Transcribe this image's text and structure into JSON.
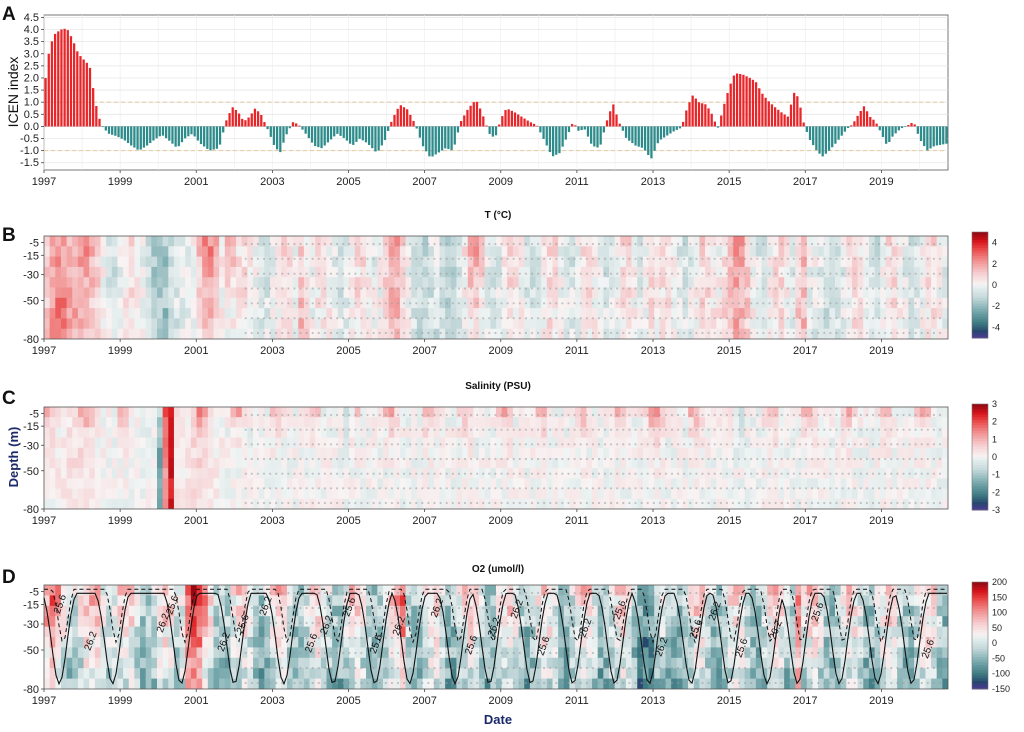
{
  "chart_data": [
    {
      "panel": "A",
      "type": "bar",
      "ylabel": "ICEN index",
      "ylim": [
        -1.8,
        4.6
      ],
      "yticks": [
        "4.5",
        "4.0",
        "3.5",
        "3.0",
        "2.5",
        "2.0",
        "1.5",
        "1.0",
        "0.5",
        "0.0",
        "-0.5",
        "-1.0",
        "-1.5"
      ],
      "xticks": [
        "1997",
        "1999",
        "2001",
        "2003",
        "2005",
        "2007",
        "2009",
        "2011",
        "2013",
        "2015",
        "2017",
        "2019"
      ],
      "xrange": [
        1997.0,
        2020.75
      ],
      "threshold_lines": [
        1.0,
        -1.0
      ],
      "colors": {
        "positive": "#e8262a",
        "negative": "#2e8b8b",
        "threshold": "#e8c89a"
      },
      "series_anchors": [
        [
          1997.0,
          1.5
        ],
        [
          1997.15,
          3.3
        ],
        [
          1997.3,
          3.85
        ],
        [
          1997.45,
          4.0
        ],
        [
          1997.6,
          4.05
        ],
        [
          1997.75,
          3.6
        ],
        [
          1997.9,
          3.0
        ],
        [
          1998.05,
          2.75
        ],
        [
          1998.2,
          2.5
        ],
        [
          1998.35,
          1.0
        ],
        [
          1998.5,
          0.05
        ],
        [
          1998.7,
          -0.3
        ],
        [
          1998.9,
          -0.4
        ],
        [
          1999.1,
          -0.55
        ],
        [
          1999.3,
          -0.8
        ],
        [
          1999.5,
          -1.0
        ],
        [
          1999.7,
          -0.8
        ],
        [
          1999.9,
          -0.55
        ],
        [
          2000.1,
          -0.35
        ],
        [
          2000.3,
          -0.6
        ],
        [
          2000.5,
          -0.9
        ],
        [
          2000.7,
          -0.5
        ],
        [
          2000.9,
          -0.3
        ],
        [
          2001.1,
          -0.7
        ],
        [
          2001.35,
          -1.0
        ],
        [
          2001.6,
          -0.9
        ],
        [
          2001.8,
          0.3
        ],
        [
          2001.95,
          0.8
        ],
        [
          2002.1,
          0.6
        ],
        [
          2002.25,
          0.2
        ],
        [
          2002.4,
          0.4
        ],
        [
          2002.55,
          0.75
        ],
        [
          2002.7,
          0.5
        ],
        [
          2002.9,
          -0.2
        ],
        [
          2003.05,
          -0.8
        ],
        [
          2003.2,
          -1.1
        ],
        [
          2003.35,
          -0.4
        ],
        [
          2003.55,
          0.2
        ],
        [
          2003.7,
          0.05
        ],
        [
          2003.9,
          -0.35
        ],
        [
          2004.1,
          -0.8
        ],
        [
          2004.3,
          -0.9
        ],
        [
          2004.5,
          -0.6
        ],
        [
          2004.7,
          -0.3
        ],
        [
          2004.9,
          -0.5
        ],
        [
          2005.1,
          -0.8
        ],
        [
          2005.3,
          -0.5
        ],
        [
          2005.5,
          -0.7
        ],
        [
          2005.75,
          -1.1
        ],
        [
          2005.95,
          -0.6
        ],
        [
          2006.15,
          0.3
        ],
        [
          2006.35,
          0.9
        ],
        [
          2006.55,
          0.7
        ],
        [
          2006.75,
          0.1
        ],
        [
          2006.95,
          -0.8
        ],
        [
          2007.15,
          -1.3
        ],
        [
          2007.35,
          -1.1
        ],
        [
          2007.55,
          -0.9
        ],
        [
          2007.75,
          -1.0
        ],
        [
          2007.95,
          0.2
        ],
        [
          2008.15,
          0.75
        ],
        [
          2008.35,
          1.1
        ],
        [
          2008.5,
          0.6
        ],
        [
          2008.7,
          -0.3
        ],
        [
          2008.85,
          -0.5
        ],
        [
          2009.0,
          0.3
        ],
        [
          2009.15,
          0.75
        ],
        [
          2009.35,
          0.6
        ],
        [
          2009.55,
          0.4
        ],
        [
          2009.75,
          0.2
        ],
        [
          2009.95,
          0.05
        ],
        [
          2010.15,
          -0.6
        ],
        [
          2010.35,
          -1.25
        ],
        [
          2010.55,
          -1.1
        ],
        [
          2010.75,
          -0.4
        ],
        [
          2010.9,
          0.2
        ],
        [
          2011.05,
          -0.2
        ],
        [
          2011.2,
          -0.1
        ],
        [
          2011.4,
          -0.8
        ],
        [
          2011.6,
          -0.9
        ],
        [
          2011.8,
          0.3
        ],
        [
          2011.95,
          0.95
        ],
        [
          2012.1,
          0.2
        ],
        [
          2012.3,
          -0.5
        ],
        [
          2012.55,
          -0.8
        ],
        [
          2012.75,
          -0.9
        ],
        [
          2012.95,
          -1.35
        ],
        [
          2013.15,
          -0.6
        ],
        [
          2013.35,
          -0.4
        ],
        [
          2013.55,
          -0.2
        ],
        [
          2013.75,
          -0.05
        ],
        [
          2013.9,
          0.8
        ],
        [
          2014.05,
          1.3
        ],
        [
          2014.2,
          1.0
        ],
        [
          2014.4,
          0.9
        ],
        [
          2014.55,
          0.5
        ],
        [
          2014.7,
          -0.1
        ],
        [
          2014.85,
          0.8
        ],
        [
          2015.0,
          1.6
        ],
        [
          2015.15,
          2.2
        ],
        [
          2015.35,
          2.15
        ],
        [
          2015.55,
          2.0
        ],
        [
          2015.7,
          1.85
        ],
        [
          2015.85,
          1.4
        ],
        [
          2016.0,
          1.1
        ],
        [
          2016.2,
          0.8
        ],
        [
          2016.4,
          0.55
        ],
        [
          2016.55,
          0.4
        ],
        [
          2016.7,
          1.4
        ],
        [
          2016.82,
          1.2
        ],
        [
          2016.95,
          0.2
        ],
        [
          2017.1,
          -0.5
        ],
        [
          2017.3,
          -1.0
        ],
        [
          2017.45,
          -1.25
        ],
        [
          2017.6,
          -1.05
        ],
        [
          2017.8,
          -0.7
        ],
        [
          2017.95,
          -0.4
        ],
        [
          2018.1,
          -0.1
        ],
        [
          2018.25,
          0.1
        ],
        [
          2018.4,
          0.5
        ],
        [
          2018.55,
          0.85
        ],
        [
          2018.7,
          0.4
        ],
        [
          2018.85,
          0.2
        ],
        [
          2019.0,
          -0.3
        ],
        [
          2019.15,
          -0.8
        ],
        [
          2019.3,
          -0.4
        ],
        [
          2019.5,
          -0.1
        ],
        [
          2019.7,
          0.05
        ],
        [
          2019.85,
          0.2
        ],
        [
          2020.0,
          -0.5
        ],
        [
          2020.2,
          -1.0
        ],
        [
          2020.4,
          -0.8
        ],
        [
          2020.6,
          -0.75
        ],
        [
          2020.75,
          -0.7
        ]
      ]
    },
    {
      "panel": "B",
      "type": "heatmap",
      "title": "T (°C)",
      "ylabel": "",
      "yticks": [
        "-5",
        "-15",
        "-30",
        "-50",
        "-80"
      ],
      "xticks": [
        "1997",
        "1999",
        "2001",
        "2003",
        "2005",
        "2007",
        "2009",
        "2011",
        "2013",
        "2015",
        "2017",
        "2019"
      ],
      "colorbar_ticks": [
        "4",
        "2",
        "0",
        "-2",
        "-4"
      ],
      "colorbar_range": [
        -5,
        5
      ]
    },
    {
      "panel": "C",
      "type": "heatmap",
      "title": "Salinity (PSU)",
      "ylabel": "Depth (m)",
      "yticks": [
        "-5",
        "-15",
        "-30",
        "-50",
        "-80"
      ],
      "xticks": [
        "1997",
        "1999",
        "2001",
        "2003",
        "2005",
        "2007",
        "2009",
        "2011",
        "2013",
        "2015",
        "2017",
        "2019"
      ],
      "colorbar_ticks": [
        "3",
        "2",
        "1",
        "0",
        "-1",
        "-2",
        "-3"
      ],
      "colorbar_range": [
        -3,
        3
      ]
    },
    {
      "panel": "D",
      "type": "heatmap",
      "title": "O2 (umol/l)",
      "xlabel": "Date",
      "yticks": [
        "-5",
        "-15",
        "-30",
        "-50",
        "-80"
      ],
      "xticks": [
        "1997",
        "1999",
        "2001",
        "2003",
        "2005",
        "2007",
        "2009",
        "2011",
        "2013",
        "2015",
        "2017",
        "2019"
      ],
      "colorbar_ticks": [
        "200",
        "150",
        "100",
        "50",
        "0",
        "-50",
        "-100",
        "-150"
      ],
      "colorbar_range": [
        -150,
        200
      ],
      "contour_labels": [
        "25.6",
        "26.2",
        "26.2",
        "25.6",
        "26.2",
        "25.6",
        "26.2",
        "25.6",
        "26.2",
        "25.6",
        "25.6",
        "26.2",
        "26.2",
        "25.6",
        "26.2",
        "26.2",
        "25.6",
        "26.2",
        "25.6",
        "26.2",
        "25.6",
        "26.2",
        "25.6",
        "26.2",
        "25.6",
        "25.6"
      ]
    }
  ]
}
